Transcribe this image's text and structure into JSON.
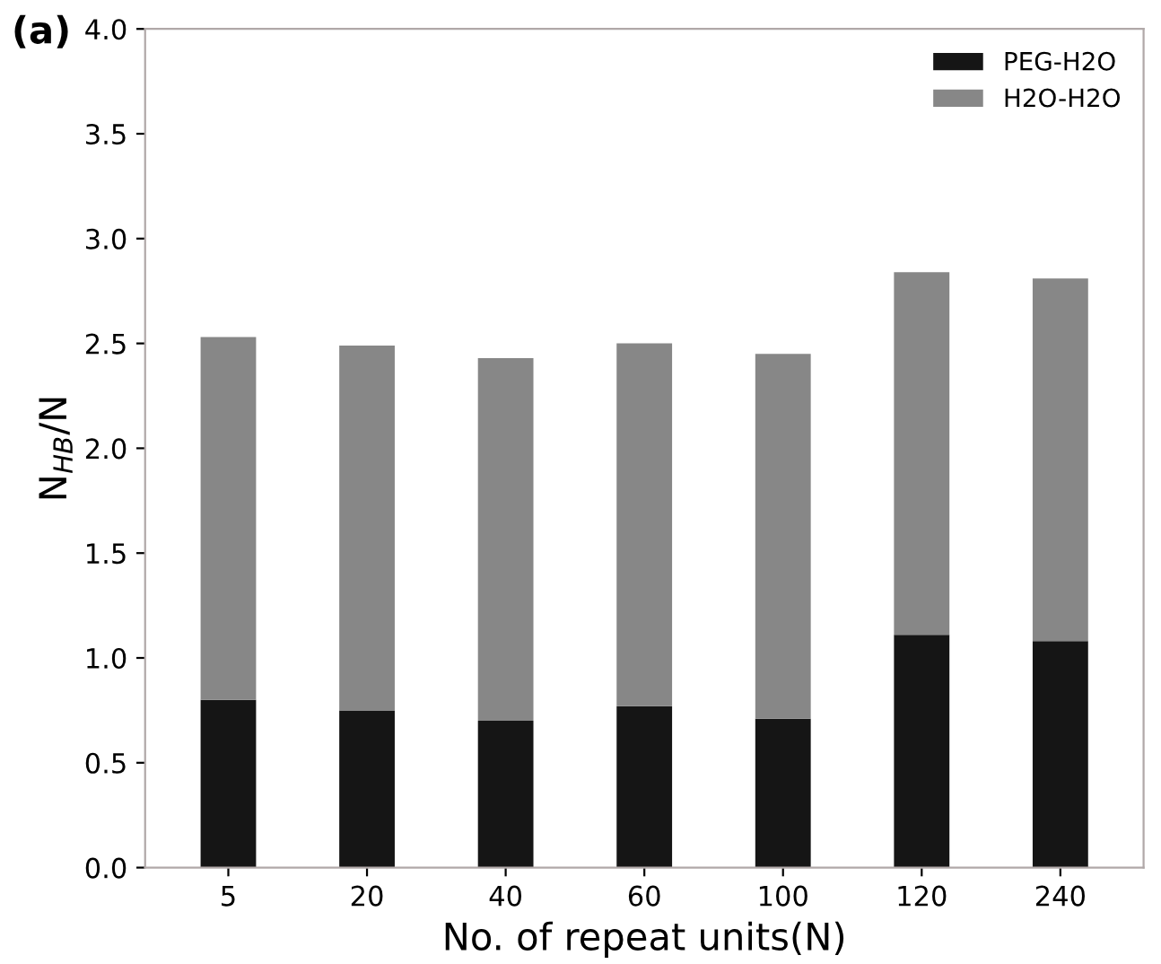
{
  "chart_data": {
    "type": "bar",
    "stacked": true,
    "xlabel": "No. of repeat units(N)",
    "ylabel": "N$_{HB}$/N",
    "annotations": [
      "(a)"
    ],
    "categories": [
      "5",
      "20",
      "40",
      "60",
      "100",
      "120",
      "240"
    ],
    "series": [
      {
        "name": "PEG-H2O",
        "color": "#151515",
        "values": [
          0.8,
          0.75,
          0.7,
          0.77,
          0.71,
          1.11,
          1.08
        ]
      },
      {
        "name": "H2O-H2O",
        "color": "#878787",
        "values": [
          1.73,
          1.74,
          1.73,
          1.73,
          1.74,
          1.73,
          1.73
        ]
      }
    ],
    "ylim": [
      0,
      4.0
    ],
    "yticks": [
      {
        "value": 0,
        "label": "0.0"
      },
      {
        "value": 0.5,
        "label": "0.5"
      },
      {
        "value": 1,
        "label": "1.0"
      },
      {
        "value": 1.5,
        "label": "1.5"
      },
      {
        "value": 2,
        "label": "2.0"
      },
      {
        "value": 2.5,
        "label": "2.5"
      },
      {
        "value": 3,
        "label": "3.0"
      },
      {
        "value": 3.5,
        "label": "3.5"
      },
      {
        "value": 4,
        "label": "4.0"
      }
    ],
    "grid": false,
    "legend": "top right"
  }
}
